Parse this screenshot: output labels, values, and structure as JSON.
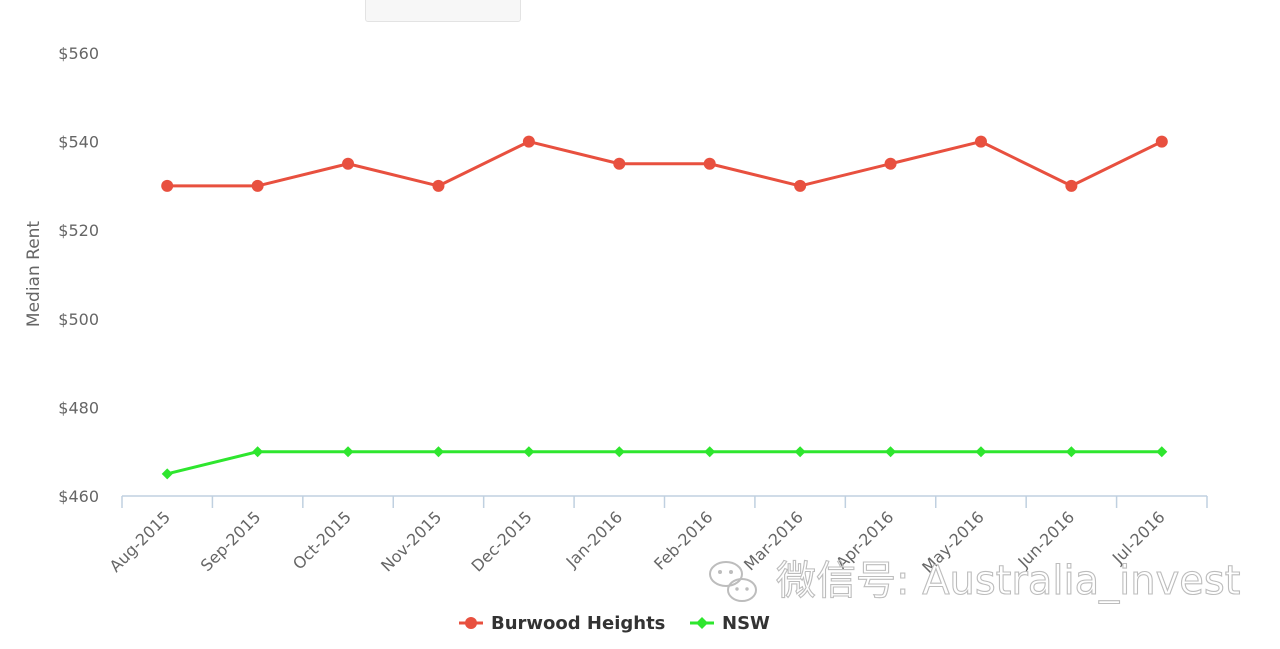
{
  "chart_data": {
    "type": "line",
    "title": "",
    "ylabel": "Median Rent",
    "xlabel": "",
    "ylim": [
      460,
      560
    ],
    "y_ticks": [
      "$460",
      "$480",
      "$500",
      "$520",
      "$540",
      "$560"
    ],
    "y_tick_values": [
      460,
      480,
      500,
      520,
      540,
      560
    ],
    "categories": [
      "Aug-2015",
      "Sep-2015",
      "Oct-2015",
      "Nov-2015",
      "Dec-2015",
      "Jan-2016",
      "Feb-2016",
      "Mar-2016",
      "Apr-2016",
      "May-2016",
      "Jun-2016",
      "Jul-2016"
    ],
    "grid": false,
    "legend_position": "bottom-center",
    "series": [
      {
        "name": "Burwood Heights",
        "color": "#e8503f",
        "marker": "circle",
        "values": [
          530,
          530,
          535,
          530,
          540,
          535,
          535,
          530,
          535,
          540,
          530,
          540
        ]
      },
      {
        "name": "NSW",
        "color": "#2ee62e",
        "marker": "diamond",
        "values": [
          465,
          470,
          470,
          470,
          470,
          470,
          470,
          470,
          470,
          470,
          470,
          470
        ]
      }
    ]
  },
  "watermark": {
    "text": "微信号: Australia_invest",
    "icon": "wechat-icon"
  }
}
